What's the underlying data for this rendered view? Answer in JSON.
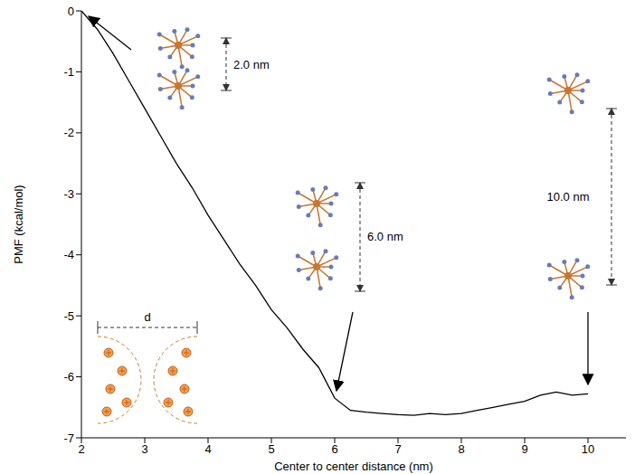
{
  "chart_data": {
    "type": "line",
    "x_label": "Center to center distance  (nm)",
    "y_label": "PMF  (kcal/mol)",
    "x": [
      2,
      2.25,
      2.5,
      2.75,
      3,
      3.25,
      3.5,
      3.75,
      4,
      4.25,
      4.5,
      4.75,
      5,
      5.25,
      5.5,
      5.75,
      6,
      6.25,
      6.5,
      6.75,
      7,
      7.25,
      7.5,
      7.75,
      8,
      8.25,
      8.5,
      8.75,
      9,
      9.25,
      9.5,
      9.75,
      10
    ],
    "values": [
      0,
      -0.3,
      -0.7,
      -1.15,
      -1.6,
      -2.05,
      -2.5,
      -2.9,
      -3.35,
      -3.75,
      -4.15,
      -4.5,
      -4.9,
      -5.2,
      -5.55,
      -5.85,
      -6.35,
      -6.55,
      -6.58,
      -6.6,
      -6.62,
      -6.63,
      -6.6,
      -6.62,
      -6.6,
      -6.55,
      -6.5,
      -6.45,
      -6.4,
      -6.3,
      -6.25,
      -6.3,
      -6.28
    ],
    "color": "#000000",
    "xlim": [
      2,
      10.6
    ],
    "ylim": [
      -7,
      0
    ],
    "xticks": [
      2,
      3,
      4,
      5,
      6,
      7,
      8,
      9,
      10
    ],
    "yticks": [
      -7,
      -6,
      -5,
      -4,
      -3,
      -2,
      -1,
      0
    ],
    "annotations": [
      "2.0 nm",
      "6.0 nm",
      "10.0 nm",
      "d"
    ]
  }
}
